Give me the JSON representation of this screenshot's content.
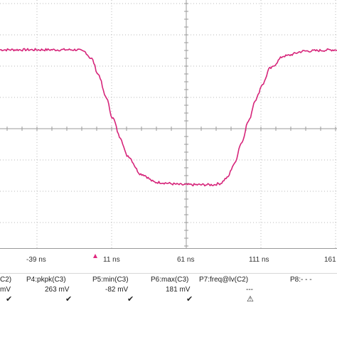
{
  "chart_data": {
    "type": "line",
    "title": "",
    "xlabel": "",
    "ylabel": "",
    "x_unit": "ns",
    "xlim": [
      -69,
      167
    ],
    "ylim": [
      -180,
      220
    ],
    "x_ticks": [
      "-39 ns",
      "11 ns",
      "61 ns",
      "111 ns",
      "161 ns"
    ],
    "grid": true,
    "color": "#d6257a",
    "series": [
      {
        "x": [
          -69,
          -30,
          -15,
          -10,
          -5,
          0,
          5,
          10,
          15,
          20,
          30,
          40,
          60,
          80,
          85,
          90,
          95,
          100,
          105,
          110,
          115,
          120,
          130,
          145,
          167
        ],
        "values": [
          140,
          140,
          140,
          137,
          126,
          100,
          65,
          30,
          0,
          -30,
          -60,
          -73,
          -77,
          -77,
          -75,
          -66,
          -44,
          -10,
          25,
          60,
          85,
          110,
          130,
          138,
          140
        ]
      }
    ]
  },
  "measurements": [
    {
      "label": "C2)",
      "value": "mV",
      "status": "✔"
    },
    {
      "label": "P4:pkpk(C3)",
      "value": "263 mV",
      "status": "✔"
    },
    {
      "label": "P5:min(C3)",
      "value": "-82 mV",
      "status": "✔"
    },
    {
      "label": "P6:max(C3)",
      "value": "181 mV",
      "status": "✔"
    },
    {
      "label": "P7:freq@lv(C2)",
      "value": "---",
      "status": "⚠"
    },
    {
      "label": "P8:- - -",
      "value": "",
      "status": ""
    }
  ],
  "trigger_color": "#e0287f"
}
